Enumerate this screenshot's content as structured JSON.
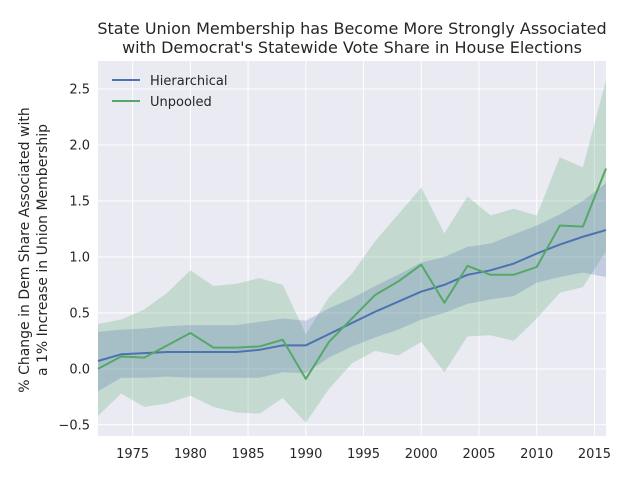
{
  "chart_data": {
    "type": "line",
    "title_lines": [
      "State Union Membership has Become More Strongly Associated",
      "with Democrat's Statewide Vote Share in House Elections"
    ],
    "ylabel_lines": [
      "% Change in Dem Share Associated with",
      "a 1% Increase in Union Membership"
    ],
    "xlabel": "",
    "xlim": [
      1972,
      2016
    ],
    "ylim": [
      -0.6,
      2.75
    ],
    "xticks": [
      1975,
      1980,
      1985,
      1990,
      1995,
      2000,
      2005,
      2010,
      2015
    ],
    "yticks": [
      -0.5,
      0.0,
      0.5,
      1.0,
      1.5,
      2.0,
      2.5
    ],
    "xtick_labels": [
      "1975",
      "1980",
      "1985",
      "1990",
      "1995",
      "2000",
      "2005",
      "2010",
      "2015"
    ],
    "ytick_labels": [
      "−0.5",
      "0.0",
      "0.5",
      "1.0",
      "1.5",
      "2.0",
      "2.5"
    ],
    "grid": true,
    "legend_position": "upper-left",
    "x": [
      1972,
      1974,
      1976,
      1978,
      1980,
      1982,
      1984,
      1986,
      1988,
      1990,
      1992,
      1994,
      1996,
      1998,
      2000,
      2002,
      2004,
      2006,
      2008,
      2010,
      2012,
      2014,
      2016
    ],
    "series": [
      {
        "name": "Hierarchical",
        "color": "#4c72b0",
        "values": [
          0.07,
          0.13,
          0.14,
          0.15,
          0.15,
          0.15,
          0.15,
          0.17,
          0.21,
          0.21,
          0.31,
          0.41,
          0.51,
          0.6,
          0.69,
          0.75,
          0.84,
          0.88,
          0.94,
          1.03,
          1.11,
          1.18,
          1.24
        ],
        "lower": [
          -0.2,
          -0.08,
          -0.08,
          -0.07,
          -0.08,
          -0.08,
          -0.08,
          -0.08,
          -0.03,
          -0.04,
          0.1,
          0.2,
          0.28,
          0.35,
          0.44,
          0.5,
          0.58,
          0.62,
          0.65,
          0.77,
          0.82,
          0.86,
          0.82
        ],
        "upper": [
          0.33,
          0.35,
          0.36,
          0.38,
          0.39,
          0.39,
          0.39,
          0.42,
          0.45,
          0.43,
          0.54,
          0.63,
          0.74,
          0.84,
          0.95,
          1.0,
          1.09,
          1.12,
          1.2,
          1.28,
          1.38,
          1.5,
          1.66
        ]
      },
      {
        "name": "Unpooled",
        "color": "#55a868",
        "values": [
          0.0,
          0.11,
          0.1,
          0.21,
          0.32,
          0.19,
          0.19,
          0.2,
          0.26,
          -0.09,
          0.24,
          0.45,
          0.66,
          0.78,
          0.93,
          0.59,
          0.92,
          0.84,
          0.84,
          0.91,
          1.28,
          1.27,
          1.79
        ],
        "lower": [
          -0.42,
          -0.22,
          -0.34,
          -0.31,
          -0.24,
          -0.34,
          -0.39,
          -0.4,
          -0.26,
          -0.48,
          -0.18,
          0.05,
          0.16,
          0.12,
          0.24,
          -0.03,
          0.29,
          0.3,
          0.25,
          0.45,
          0.68,
          0.73,
          1.05
        ],
        "upper": [
          0.4,
          0.44,
          0.53,
          0.68,
          0.88,
          0.74,
          0.76,
          0.81,
          0.75,
          0.31,
          0.64,
          0.85,
          1.14,
          1.38,
          1.62,
          1.21,
          1.54,
          1.37,
          1.43,
          1.37,
          1.89,
          1.8,
          2.58
        ]
      }
    ]
  }
}
